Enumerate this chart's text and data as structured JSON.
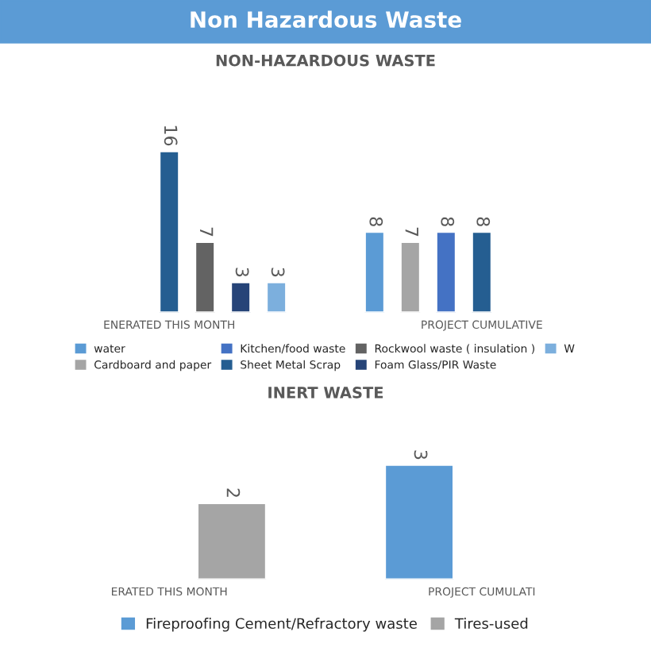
{
  "chart_data": [
    {
      "type": "bar",
      "title": "Non Hazardous Waste\nNON-HAZARDOUS WASTE",
      "categories": [
        "ENERATED THIS MONTH",
        "PROJECT CUMULATIVE"
      ],
      "data_labels": true,
      "legend": "bottom",
      "series": [
        {
          "name": "water",
          "color": "#5b9bd5",
          "values": [
            null,
            8
          ]
        },
        {
          "name": "Cardboard and paper",
          "color": "#a5a5a5",
          "values": [
            null,
            7
          ]
        },
        {
          "name": "Kitchen/food waste",
          "color": "#4472c4",
          "values": [
            null,
            8
          ]
        },
        {
          "name": "Sheet Metal Scrap",
          "color": "#255e91",
          "values": [
            16,
            8
          ]
        },
        {
          "name": "Rockwool waste ( insulation )",
          "color": "#636363",
          "values": [
            7,
            null
          ]
        },
        {
          "name": "Foam Glass/PIR Waste",
          "color": "#264478",
          "values": [
            3,
            null
          ]
        },
        {
          "name": "W",
          "color": "#7cafdd",
          "values": [
            3,
            null
          ]
        }
      ]
    },
    {
      "type": "bar",
      "title": "INERT WASTE",
      "categories": [
        "ERATED THIS MONTH",
        "PROJECT CUMULATI"
      ],
      "data_labels": true,
      "legend": "bottom",
      "series": [
        {
          "name": "Fireproofing Cement/Refractory waste",
          "color": "#5b9bd5",
          "values": [
            null,
            3
          ]
        },
        {
          "name": "Tires-used",
          "color": "#a5a5a5",
          "values": [
            2,
            null
          ]
        }
      ]
    }
  ]
}
